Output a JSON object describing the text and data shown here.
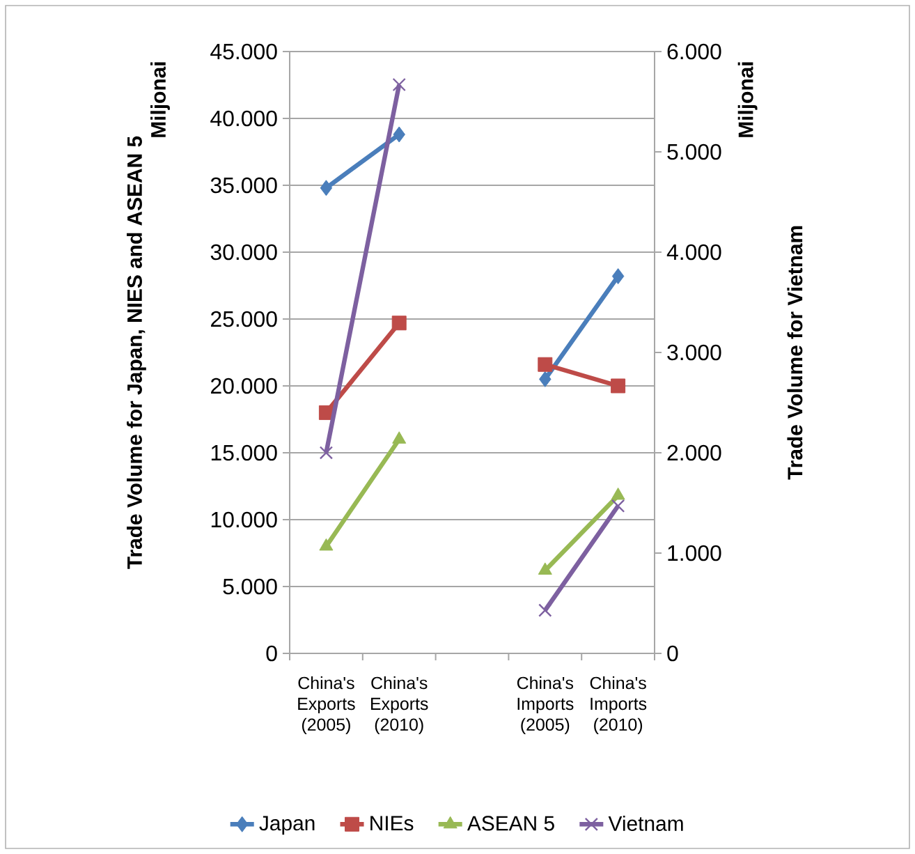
{
  "chart_data": {
    "type": "line",
    "categories": [
      "China's Exports (2005)",
      "China's Exports (2010)",
      null,
      "China's Imports (2005)",
      "China's Imports (2010)"
    ],
    "series": [
      {
        "name": "Japan",
        "color": "#4a7ebb",
        "marker": "diamond",
        "values": [
          34800,
          38800,
          null,
          20500,
          28200
        ]
      },
      {
        "name": "NIEs",
        "color": "#be4b48",
        "marker": "square",
        "values": [
          18000,
          24700,
          null,
          21600,
          20000
        ]
      },
      {
        "name": "ASEAN 5",
        "color": "#98b954",
        "marker": "triangle",
        "values": [
          8000,
          16000,
          null,
          6200,
          11800
        ]
      },
      {
        "name": "Vietnam",
        "color": "#7d60a0",
        "marker": "cross",
        "axis": "y2",
        "values": [
          2000,
          5670,
          null,
          430,
          1470
        ]
      }
    ],
    "ylabel": "Trade Volume for Japan, NIES and ASEAN 5",
    "y2label": "Trade Volume for Vietnam",
    "annotations": [
      "Miljonai",
      "Miljonai"
    ],
    "ylim": [
      0,
      45000
    ],
    "yticks": [
      0,
      {
        "value": 5000,
        "label": "5.000"
      },
      {
        "value": 10000,
        "label": "10.000"
      },
      {
        "value": 15000,
        "label": "15.000"
      },
      {
        "value": 20000,
        "label": "20.000"
      },
      {
        "value": 25000,
        "label": "25.000"
      },
      {
        "value": 30000,
        "label": "30.000"
      },
      {
        "value": 35000,
        "label": "35.000"
      },
      {
        "value": 40000,
        "label": "40.000"
      },
      {
        "value": 45000,
        "label": "45.000"
      }
    ],
    "y2lim": [
      0,
      6000
    ],
    "y2ticks": [
      0,
      {
        "value": 1000,
        "label": "1.000"
      },
      {
        "value": 2000,
        "label": "2.000"
      },
      {
        "value": 3000,
        "label": "3.000"
      },
      {
        "value": 4000,
        "label": "4.000"
      },
      {
        "value": 5000,
        "label": "5.000"
      },
      {
        "value": 6000,
        "label": "6.000"
      }
    ],
    "grid": "y",
    "legend": "bottom"
  }
}
